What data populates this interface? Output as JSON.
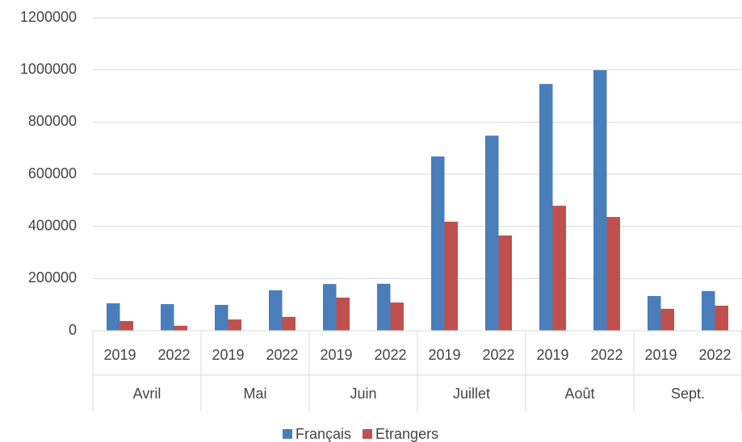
{
  "chart_data": {
    "type": "bar",
    "categories": [
      "2019",
      "2022",
      "2019",
      "2022",
      "2019",
      "2022",
      "2019",
      "2022",
      "2019",
      "2022",
      "2019",
      "2022"
    ],
    "groups": [
      "Avril",
      "Mai",
      "Juin",
      "Juillet",
      "Août",
      "Sept."
    ],
    "series": [
      {
        "name": "Français",
        "color": "#4a7ebb",
        "values": [
          105000,
          102000,
          99000,
          155000,
          179000,
          180000,
          668000,
          748000,
          946000,
          999000,
          133000,
          152000
        ]
      },
      {
        "name": "Etrangers",
        "color": "#c0504d",
        "values": [
          37000,
          19000,
          43000,
          53000,
          127000,
          108000,
          418000,
          365000,
          479000,
          436000,
          84000,
          96000
        ]
      }
    ],
    "ylim": [
      0,
      1200000
    ],
    "yticks": [
      0,
      200000,
      400000,
      600000,
      800000,
      1000000,
      1200000
    ],
    "grid": true,
    "legend": "bottom"
  }
}
